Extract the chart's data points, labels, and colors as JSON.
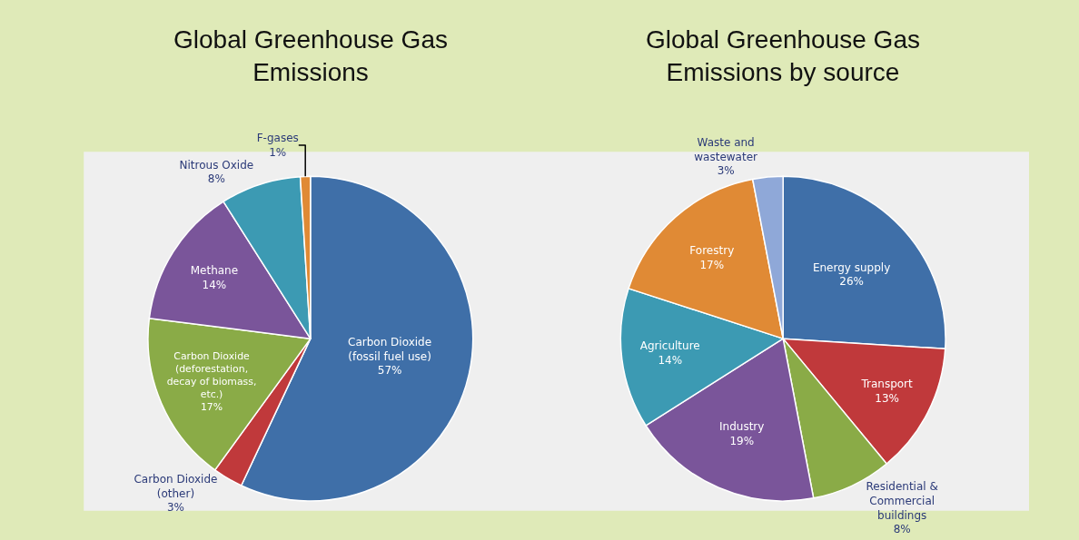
{
  "chart_data": [
    {
      "type": "pie",
      "title": "Global Greenhouse Gas Emissions",
      "categories": [
        "Carbon Dioxide (fossil fuel use)",
        "Carbon Dioxide (other)",
        "Carbon Dioxide (deforestation, decay of biomass, etc.)",
        "Methane",
        "Nitrous Oxide",
        "F-gases"
      ],
      "values": [
        57,
        3,
        17,
        14,
        8,
        1
      ],
      "value_labels": [
        "57%",
        "3%",
        "17%",
        "14%",
        "8%",
        "1%"
      ],
      "colors": [
        "#3f6fa8",
        "#c0393b",
        "#8aab47",
        "#7a559a",
        "#3c9ab3",
        "#e08a35"
      ],
      "legend": false
    },
    {
      "type": "pie",
      "title": "Global Greenhouse Gas Emissions by source",
      "categories": [
        "Energy supply",
        "Transport",
        "Residential & Commercial buildings",
        "Industry",
        "Agriculture",
        "Forestry",
        "Waste and wastewater"
      ],
      "values": [
        26,
        13,
        8,
        19,
        14,
        17,
        3
      ],
      "value_labels": [
        "26%",
        "13%",
        "8%",
        "19%",
        "14%",
        "17%",
        "3%"
      ],
      "colors": [
        "#3f6fa8",
        "#c0393b",
        "#8aab47",
        "#7a559a",
        "#3c9ab3",
        "#e08a35",
        "#8fa8d8"
      ],
      "legend": false
    }
  ]
}
